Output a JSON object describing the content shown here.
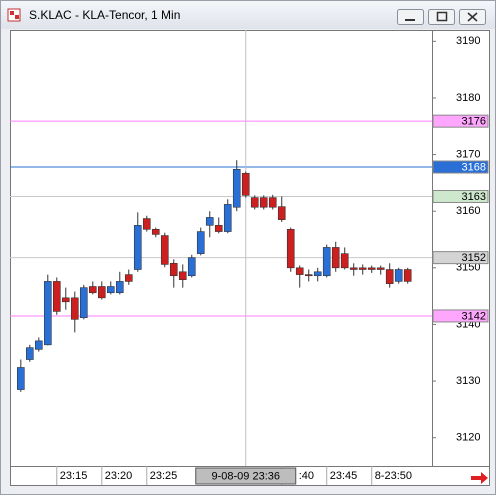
{
  "chart_data": {
    "type": "candlestick",
    "title": "S.KLAC - KLA-Tencor, 1 Min",
    "up_color": "#2a6fd6",
    "down_color": "#cc1f1f",
    "ylim": [
      3115,
      3192
    ],
    "yticks": [
      3120,
      3130,
      3140,
      3150,
      3160,
      3170,
      3180,
      3190
    ],
    "xlim": [
      -1.2,
      45.7
    ],
    "xticks": [
      {
        "value": 4,
        "label": "23:15"
      },
      {
        "value": 9,
        "label": "23:20"
      },
      {
        "value": 14,
        "label": "23:25"
      },
      {
        "value": 29,
        "label": ":40"
      },
      {
        "value": 34,
        "label": "23:45"
      },
      {
        "value": 39,
        "label": "8-23:50"
      }
    ],
    "crosshair": {
      "x": 25,
      "label": "9-08-09 23:36"
    },
    "levels": [
      {
        "value": 3175.9,
        "label": "3176",
        "color": "#ff7fff",
        "label_bg": "#ffa6ff",
        "label_color": "#000"
      },
      {
        "value": 3167.8,
        "label": "3168",
        "color": "#2a6fd6",
        "label_bg": "#2a6fd6",
        "label_color": "#fff"
      },
      {
        "value": 3162.6,
        "label": "3163",
        "color": "#c8c8c8",
        "label_bg": "#cde8cd",
        "label_color": "#000"
      },
      {
        "value": 3151.8,
        "label": "3152",
        "color": "#c8c8c8",
        "label_bg": "#d4d4d4",
        "label_color": "#000"
      },
      {
        "value": 3141.5,
        "label": "3142",
        "color": "#ff7fff",
        "label_bg": "#ffa6ff",
        "label_color": "#000"
      }
    ],
    "open": [
      3128.5,
      3133.8,
      3135.6,
      3136.4,
      3147.6,
      3144.7,
      3144.7,
      3141.2,
      3146.7,
      3146.7,
      3145.6,
      3145.6,
      3148.8,
      3149.7,
      3158.7,
      3156.8,
      3155.7,
      3150.8,
      3149.3,
      3148.6,
      3152.5,
      3157.5,
      3157.5,
      3156.4,
      3160.7,
      3166.7,
      3162.4,
      3162.4,
      3162.4,
      3160.8,
      3156.8,
      3150.0,
      3148.8,
      3148.6,
      3148.6,
      3153.6,
      3152.5,
      3150.0,
      3150.0,
      3150.0,
      3150.0,
      3149.7,
      3147.6,
      3149.7
    ],
    "high": [
      3133.8,
      3136.4,
      3137.7,
      3148.8,
      3148.3,
      3146.5,
      3145.8,
      3147.0,
      3147.6,
      3147.6,
      3147.6,
      3149.3,
      3149.7,
      3159.8,
      3159.2,
      3157.1,
      3156.2,
      3151.5,
      3150.6,
      3152.3,
      3157.1,
      3160.0,
      3158.9,
      3162.1,
      3169.0,
      3167.0,
      3162.8,
      3162.8,
      3162.9,
      3162.6,
      3157.1,
      3150.4,
      3149.7,
      3150.0,
      3154.1,
      3154.6,
      3153.6,
      3150.8,
      3150.6,
      3150.4,
      3150.4,
      3150.8,
      3150.0,
      3150.0
    ],
    "low": [
      3128.1,
      3133.4,
      3135.2,
      3136.3,
      3141.7,
      3142.6,
      3138.6,
      3140.9,
      3145.3,
      3144.4,
      3145.3,
      3145.3,
      3147.0,
      3149.3,
      3156.4,
      3155.4,
      3150.1,
      3146.5,
      3146.5,
      3148.3,
      3152.2,
      3155.4,
      3156.1,
      3156.1,
      3160.0,
      3162.4,
      3160.3,
      3160.3,
      3160.3,
      3158.1,
      3149.3,
      3146.5,
      3147.6,
      3147.6,
      3148.3,
      3149.3,
      3149.7,
      3148.6,
      3148.8,
      3149.1,
      3148.8,
      3146.5,
      3147.2,
      3147.2
    ],
    "close": [
      3132.4,
      3135.9,
      3137.1,
      3147.6,
      3142.3,
      3144.0,
      3140.9,
      3146.5,
      3145.6,
      3144.7,
      3146.7,
      3147.6,
      3147.6,
      3157.5,
      3156.8,
      3155.9,
      3150.6,
      3148.6,
      3147.9,
      3151.8,
      3156.4,
      3158.9,
      3156.4,
      3161.2,
      3167.4,
      3162.8,
      3160.7,
      3160.7,
      3160.7,
      3158.5,
      3150.0,
      3148.8,
      3148.6,
      3149.3,
      3153.6,
      3150.0,
      3150.0,
      3149.7,
      3149.7,
      3149.7,
      3149.7,
      3147.2,
      3149.7,
      3147.6
    ]
  }
}
